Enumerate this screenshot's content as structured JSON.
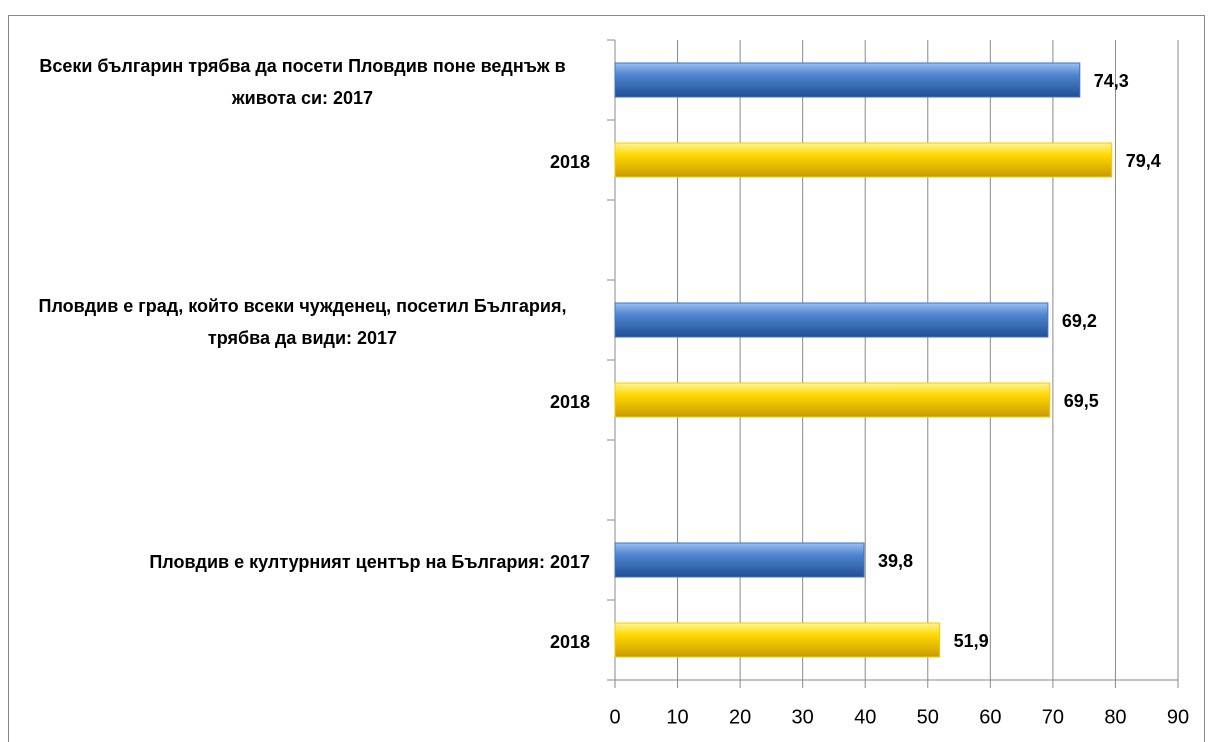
{
  "chart_data": {
    "type": "bar",
    "orientation": "horizontal",
    "categories": [
      "Всеки българин трябва да посети Пловдив поне веднъж в живота си: 2017",
      "2018",
      "Пловдив е град, който всеки чужденец, посетил България, трябва да види: 2017",
      "2018",
      "Пловдив е културният център на България: 2017",
      "2018"
    ],
    "values": [
      74.3,
      79.4,
      69.2,
      69.5,
      39.8,
      51.9
    ],
    "value_labels": [
      "74,3",
      "79,4",
      "69,2",
      "69,5",
      "39,8",
      "51,9"
    ],
    "colors": [
      "#3f73c0",
      "#f5cc00",
      "#3f73c0",
      "#f5cc00",
      "#3f73c0",
      "#f5cc00"
    ],
    "xlim": [
      0,
      90
    ],
    "xticks": [
      0,
      10,
      20,
      30,
      40,
      50,
      60,
      70,
      80,
      90
    ],
    "grid": true
  }
}
